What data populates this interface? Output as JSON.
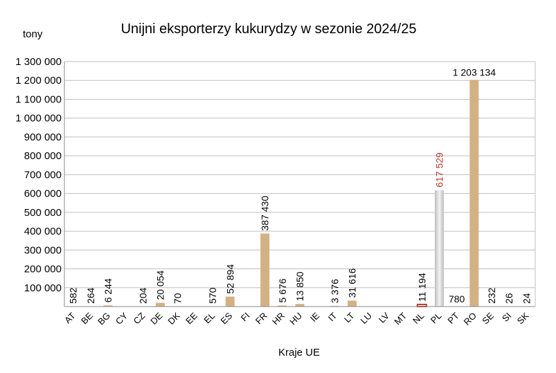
{
  "chart_data": {
    "type": "bar",
    "title": "Unijni eksporterzy kukurydzy w sezonie 2024/25",
    "unit_label": "tony",
    "xlabel": "Kraje UE",
    "ylabel": "",
    "ylim": [
      0,
      1300000
    ],
    "ytick_step": 100000,
    "yticks": [
      "100 000",
      "200 000",
      "300 000",
      "400 000",
      "500 000",
      "600 000",
      "700 000",
      "800 000",
      "900 000",
      "1 000 000",
      "1 100 000",
      "1 200 000",
      "1 300 000"
    ],
    "grid": true,
    "legend": "none",
    "categories": [
      "AT",
      "BE",
      "BG",
      "CY",
      "CZ",
      "DE",
      "DK",
      "EE",
      "EL",
      "ES",
      "FI",
      "FR",
      "HR",
      "HU",
      "IE",
      "IT",
      "LT",
      "LU",
      "LV",
      "MT",
      "NL",
      "PL",
      "PT",
      "RO",
      "SE",
      "SI",
      "SK"
    ],
    "values": [
      582,
      264,
      6244,
      null,
      204,
      20054,
      70,
      null,
      570,
      52894,
      null,
      387430,
      5676,
      13850,
      null,
      3376,
      31616,
      null,
      null,
      null,
      11194,
      617529,
      780,
      1203134,
      232,
      26,
      24
    ],
    "data_labels": [
      "582",
      "264",
      "6 244",
      "",
      "204",
      "20 054",
      "70",
      "",
      "570",
      "52 894",
      "",
      "387 430",
      "5 676",
      "13 850",
      "",
      "3 376",
      "31 616",
      "",
      "",
      "",
      "11 194",
      "617 529",
      "780",
      "1 203 134",
      "232",
      "26",
      "24"
    ],
    "colors": {
      "default_bar": "#d4b183",
      "highlight_bar": "#d8d8d8",
      "highlight_label": "#c0392b",
      "nl_bar": "#c0392b",
      "grid": "#bfbfbf",
      "axis": "#888888"
    },
    "highlight_category": "PL",
    "nl_category": "NL",
    "horizontal_label_categories": [
      "PT",
      "RO"
    ]
  }
}
